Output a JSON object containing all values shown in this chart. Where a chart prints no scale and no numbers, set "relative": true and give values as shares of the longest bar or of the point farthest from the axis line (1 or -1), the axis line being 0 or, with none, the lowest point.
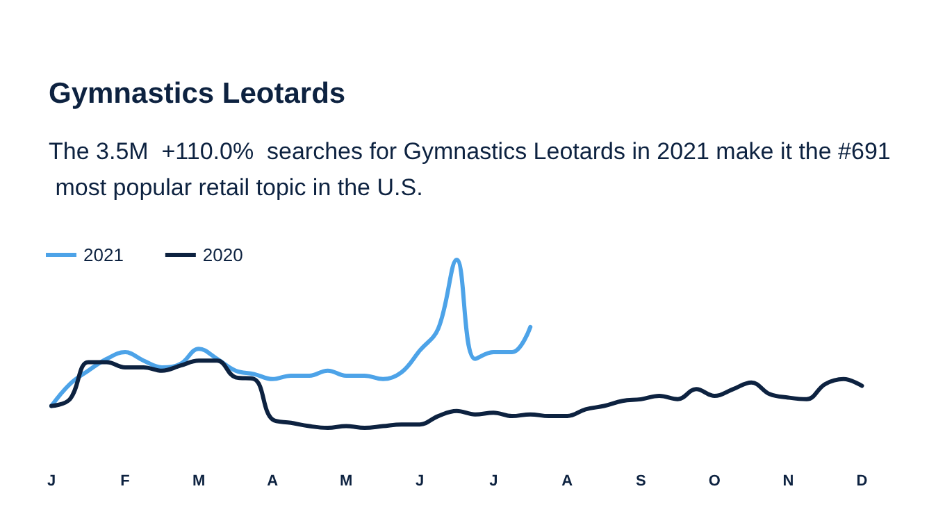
{
  "chart_data": {
    "type": "line",
    "title": "Gymnastics Leotards",
    "subtitle": "The 3.5M  +110.0%  searches for Gymnastics Leotards in 2021 make it the #691 most popular retail topic in the U.S.",
    "categories": [
      "J",
      null,
      null,
      null,
      "F",
      null,
      null,
      null,
      "M",
      null,
      null,
      null,
      "A",
      null,
      null,
      null,
      "M",
      null,
      null,
      null,
      "J",
      null,
      null,
      null,
      "J",
      null,
      null,
      null,
      "A",
      null,
      null,
      null,
      "S",
      null,
      null,
      null,
      "O",
      null,
      null,
      null,
      "N",
      null,
      null,
      null,
      "D",
      null,
      null,
      null
    ],
    "relative": true,
    "legend": "top left",
    "grid": false,
    "marker": "none",
    "line_style": "solid",
    "series": [
      {
        "name": "2021",
        "color": "#4da3e8",
        "values": [
          0.13,
          0.26,
          0.34,
          0.41,
          0.45,
          0.4,
          0.36,
          0.38,
          0.47,
          0.41,
          0.34,
          0.32,
          0.29,
          0.31,
          0.31,
          0.34,
          0.31,
          0.31,
          0.29,
          0.33,
          0.46,
          0.59,
          1,
          0.41,
          0.45,
          0.45,
          0.6,
          null,
          null,
          null,
          null,
          null,
          null,
          null,
          null,
          null,
          null,
          null,
          null,
          null,
          null,
          null,
          null,
          null,
          null,
          null,
          null,
          null
        ]
      },
      {
        "name": "2020",
        "color": "#0d2240",
        "values": [
          0.13,
          0.17,
          0.39,
          0.39,
          0.36,
          0.36,
          0.34,
          0.37,
          0.4,
          0.4,
          0.3,
          0.29,
          0.05,
          0.03,
          0.01,
          0,
          0.01,
          0,
          0.01,
          0.02,
          0.02,
          0.07,
          0.1,
          0.08,
          0.09,
          0.07,
          0.08,
          0.07,
          0.07,
          0.11,
          0.13,
          0.16,
          0.17,
          0.19,
          0.17,
          0.23,
          0.19,
          0.23,
          0.27,
          0.2,
          0.18,
          0.17,
          0.26,
          0.29,
          0.25,
          null,
          null,
          null
        ]
      }
    ]
  }
}
